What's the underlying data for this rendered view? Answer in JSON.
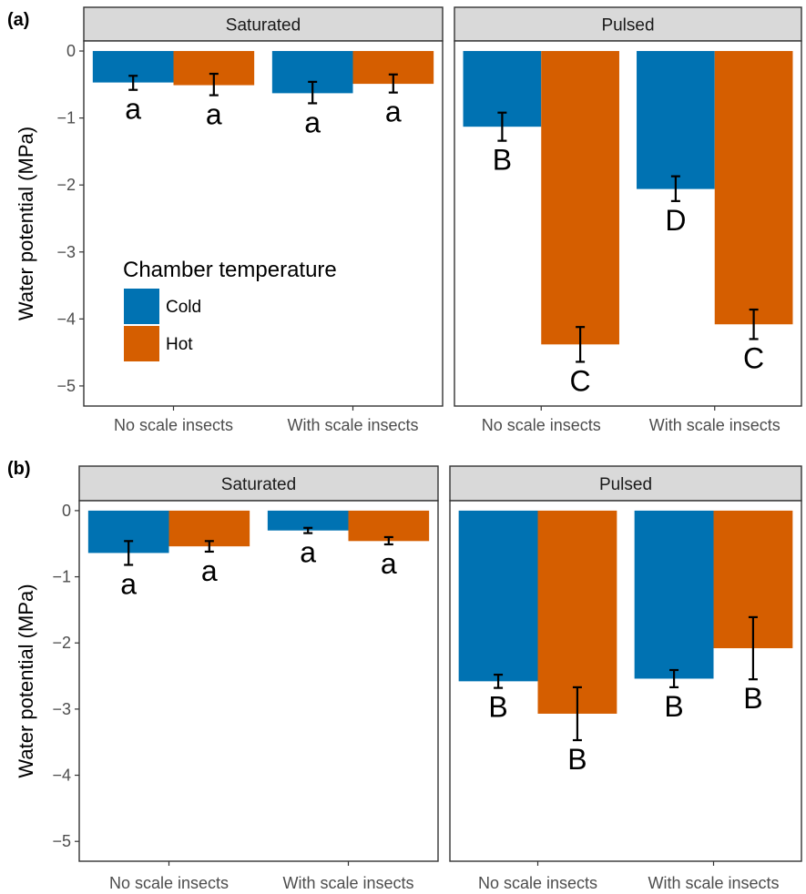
{
  "chart_data": [
    {
      "type": "bar",
      "panel_label": "(a)",
      "ylabel": "Water potential (MPa)",
      "ylim": [
        -5.3,
        0.15
      ],
      "yticks": [
        0,
        -1,
        -2,
        -3,
        -4,
        -5
      ],
      "yticklabels": [
        "0",
        "−1",
        "−2",
        "−3",
        "−4",
        "−5"
      ],
      "categories": [
        "No scale insects",
        "With scale insects"
      ],
      "legend": {
        "title": "Chamber temperature",
        "placement": "bottom-left inside first facet",
        "entries": [
          {
            "name": "Cold",
            "color": "#0072b2"
          },
          {
            "name": "Hot",
            "color": "#d55e00"
          }
        ]
      },
      "facets": [
        {
          "name": "Saturated",
          "series": [
            {
              "name": "Cold",
              "values": [
                -0.47,
                -0.63
              ],
              "err_low": [
                -0.58,
                -0.78
              ],
              "err_high": [
                -0.37,
                -0.46
              ],
              "sig": [
                "a",
                "a"
              ]
            },
            {
              "name": "Hot",
              "values": [
                -0.51,
                -0.49
              ],
              "err_low": [
                -0.66,
                -0.62
              ],
              "err_high": [
                -0.34,
                -0.35
              ],
              "sig": [
                "a",
                "a"
              ]
            }
          ]
        },
        {
          "name": "Pulsed",
          "series": [
            {
              "name": "Cold",
              "values": [
                -1.13,
                -2.06
              ],
              "err_low": [
                -1.34,
                -2.24
              ],
              "err_high": [
                -0.92,
                -1.87
              ],
              "sig": [
                "B",
                "D"
              ]
            },
            {
              "name": "Hot",
              "values": [
                -4.38,
                -4.08
              ],
              "err_low": [
                -4.64,
                -4.3
              ],
              "err_high": [
                -4.12,
                -3.86
              ],
              "sig": [
                "C",
                "C"
              ]
            }
          ]
        }
      ]
    },
    {
      "type": "bar",
      "panel_label": "(b)",
      "ylabel": "Water potential (MPa)",
      "ylim": [
        -5.3,
        0.15
      ],
      "yticks": [
        0,
        -1,
        -2,
        -3,
        -4,
        -5
      ],
      "yticklabels": [
        "0",
        "−1",
        "−2",
        "−3",
        "−4",
        "−5"
      ],
      "categories": [
        "No scale insects",
        "With scale insects"
      ],
      "facets": [
        {
          "name": "Saturated",
          "series": [
            {
              "name": "Cold",
              "values": [
                -0.64,
                -0.3
              ],
              "err_low": [
                -0.82,
                -0.34
              ],
              "err_high": [
                -0.46,
                -0.26
              ],
              "sig": [
                "a",
                "a"
              ]
            },
            {
              "name": "Hot",
              "values": [
                -0.54,
                -0.46
              ],
              "err_low": [
                -0.62,
                -0.51
              ],
              "err_high": [
                -0.46,
                -0.4
              ],
              "sig": [
                "a",
                "a"
              ]
            }
          ]
        },
        {
          "name": "Pulsed",
          "series": [
            {
              "name": "Cold",
              "values": [
                -2.58,
                -2.54
              ],
              "err_low": [
                -2.68,
                -2.67
              ],
              "err_high": [
                -2.48,
                -2.41
              ],
              "sig": [
                "B",
                "B"
              ]
            },
            {
              "name": "Hot",
              "values": [
                -3.07,
                -2.08
              ],
              "err_low": [
                -3.47,
                -2.55
              ],
              "err_high": [
                -2.67,
                -1.61
              ],
              "sig": [
                "B",
                "B"
              ]
            }
          ]
        }
      ]
    }
  ]
}
